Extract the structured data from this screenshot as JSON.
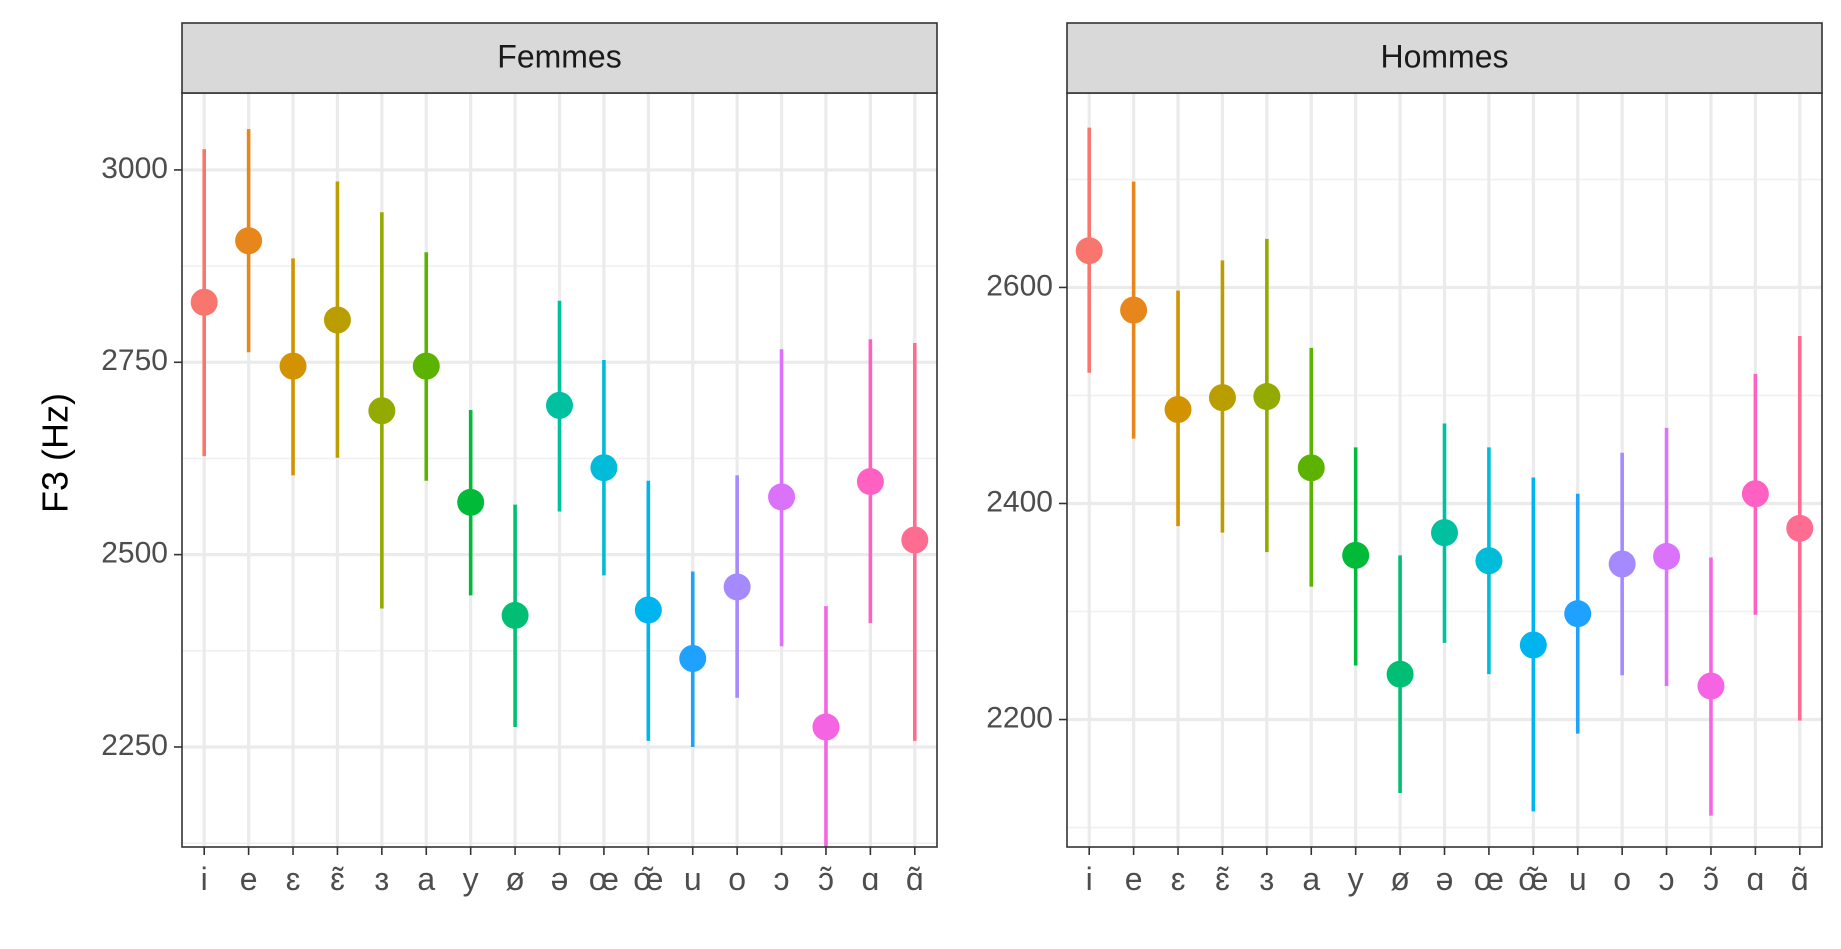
{
  "chart_data": {
    "type": "pointrange",
    "ylabel": "F3 (Hz)",
    "categories": [
      "i",
      "e",
      "ɛ",
      "ɛ̃",
      "ɜ",
      "a",
      "y",
      "ø",
      "ə",
      "œ",
      "œ̃",
      "u",
      "o",
      "ɔ",
      "ɔ̃",
      "ɑ",
      "ɑ̃"
    ],
    "colors": [
      "#F8766D",
      "#E7861B",
      "#D39200",
      "#BA9E00",
      "#93AA00",
      "#5BB300",
      "#00BA38",
      "#00BF74",
      "#00C19F",
      "#00BCD8",
      "#00B4EF",
      "#1FA2FF",
      "#A58AFF",
      "#DB72FB",
      "#F564E3",
      "#FF61C3",
      "#FF6C91"
    ],
    "grid": true,
    "panels": [
      {
        "label": "Femmes",
        "ylim": [
          2120,
          3100
        ],
        "yticks": [
          2250,
          2500,
          2750,
          3000
        ],
        "yticks_minor": [
          2125,
          2375,
          2625,
          2875
        ],
        "y": [
          2828,
          2908,
          2745,
          2805,
          2687,
          2745,
          2568,
          2421,
          2694,
          2613,
          2428,
          2365,
          2458,
          2575,
          2276,
          2595,
          2519
        ],
        "lo": [
          2628,
          2763,
          2603,
          2626,
          2430,
          2596,
          2447,
          2276,
          2556,
          2473,
          2258,
          2250,
          2314,
          2381,
          2120,
          2411,
          2258
        ],
        "hi": [
          3027,
          3053,
          2885,
          2985,
          2945,
          2893,
          2688,
          2565,
          2830,
          2753,
          2596,
          2478,
          2603,
          2767,
          2433,
          2780,
          2775
        ]
      },
      {
        "label": "Hommes",
        "ylim": [
          2082,
          2780
        ],
        "yticks": [
          2200,
          2400,
          2600
        ],
        "yticks_minor": [
          2100,
          2300,
          2500,
          2700
        ],
        "y": [
          2634,
          2579,
          2487,
          2498,
          2499,
          2433,
          2352,
          2242,
          2373,
          2347,
          2269,
          2298,
          2344,
          2351,
          2231,
          2409,
          2377
        ],
        "lo": [
          2521,
          2460,
          2379,
          2373,
          2355,
          2323,
          2250,
          2132,
          2271,
          2242,
          2115,
          2187,
          2241,
          2231,
          2111,
          2297,
          2199
        ],
        "hi": [
          2748,
          2698,
          2597,
          2625,
          2645,
          2544,
          2452,
          2352,
          2474,
          2452,
          2424,
          2409,
          2447,
          2470,
          2350,
          2520,
          2555
        ]
      }
    ]
  }
}
